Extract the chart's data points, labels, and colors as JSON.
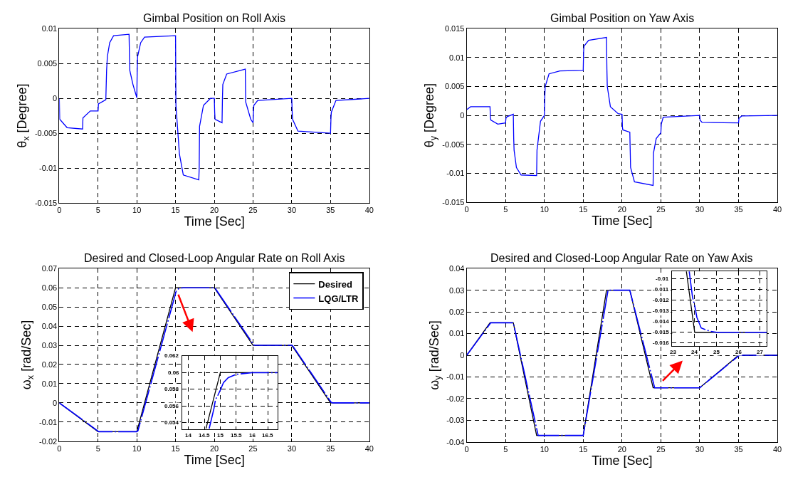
{
  "chart_data": [
    {
      "type": "line",
      "title": "Gimbal Position on Roll Axis",
      "xlabel": "Time [Sec]",
      "ylabel": "θ$_{x}$ [Degree]",
      "xlim": [
        0,
        40
      ],
      "xticks": [
        0,
        5,
        10,
        15,
        20,
        25,
        30,
        35,
        40
      ],
      "ylim": [
        -0.015,
        0.01
      ],
      "yticks": [
        -0.015,
        -0.01,
        -0.005,
        0,
        0.005,
        0.01
      ],
      "grid": true,
      "legend": false,
      "marker": "none",
      "series": [
        {
          "color": "#0000ff",
          "line_style": "solid",
          "x": [
            0,
            0.05,
            1,
            3,
            3.05,
            4,
            5,
            5.05,
            6,
            6.1,
            6.2,
            6.5,
            7,
            9,
            9.05,
            9.1,
            9.5,
            10,
            10.05,
            10.1,
            10.5,
            11,
            15,
            15.05,
            15.5,
            16,
            18,
            18.05,
            18.1,
            18.6,
            19.5,
            20,
            20.05,
            20.1,
            21,
            21.05,
            21.1,
            21.6,
            24,
            24.05,
            24.7,
            25,
            25.05,
            25.1,
            25.6,
            30,
            30.05,
            30.1,
            30.8,
            35,
            35.05,
            35.1,
            35.7,
            40
          ],
          "values": [
            0,
            -0.003,
            -0.0042,
            -0.0044,
            -0.0028,
            -0.0018,
            -0.0018,
            -0.0008,
            -0.0002,
            0.004,
            0.006,
            0.008,
            0.009,
            0.0092,
            0.006,
            0.004,
            0.002,
            0.0001,
            0.004,
            0.006,
            0.008,
            0.0088,
            0.009,
            -0.001,
            -0.008,
            -0.011,
            -0.0117,
            -0.01,
            -0.004,
            -0.001,
            0,
            0,
            -0.002,
            -0.003,
            -0.0035,
            0,
            0.002,
            0.0035,
            0.0042,
            -0.0005,
            -0.003,
            -0.0035,
            -0.002,
            -0.001,
            -0.0003,
            0,
            -0.002,
            -0.003,
            -0.0047,
            -0.005,
            -0.003,
            -0.002,
            -0.0003,
            0
          ]
        }
      ]
    },
    {
      "type": "line",
      "title": "Gimbal Position on Yaw Axis",
      "xlabel": "Time [Sec]",
      "ylabel": "θ$_{y}$ [Degree]",
      "xlim": [
        0,
        40
      ],
      "xticks": [
        0,
        5,
        10,
        15,
        20,
        25,
        30,
        35,
        40
      ],
      "ylim": [
        -0.015,
        0.015
      ],
      "yticks": [
        -0.015,
        -0.01,
        -0.005,
        0,
        0.005,
        0.01,
        0.015
      ],
      "grid": true,
      "legend": false,
      "marker": "none",
      "series": [
        {
          "color": "#0000ff",
          "line_style": "solid",
          "x": [
            0,
            0.5,
            3,
            3.05,
            3.1,
            4,
            5,
            5.05,
            5.2,
            6,
            6.05,
            6.1,
            6.4,
            7,
            9,
            9.05,
            9.5,
            10,
            10.05,
            10.1,
            10.6,
            12,
            15,
            15.05,
            15.1,
            15.7,
            18,
            18.05,
            18.1,
            18.5,
            19.5,
            20,
            20.05,
            20.1,
            21,
            21.05,
            21.1,
            21.6,
            24,
            24.05,
            24.4,
            25,
            25.05,
            25.3,
            30,
            30.05,
            30.3,
            35,
            35.05,
            35.4,
            40
          ],
          "values": [
            0.001,
            0.0015,
            0.0015,
            -0.0003,
            -0.0008,
            -0.0015,
            -0.0013,
            -0.0005,
            -0.0002,
            0.0002,
            -0.004,
            -0.006,
            -0.009,
            -0.0103,
            -0.0104,
            -0.006,
            -0.001,
            0,
            0.003,
            0.005,
            0.0072,
            0.0077,
            0.0078,
            0.011,
            0.012,
            0.013,
            0.0135,
            0.008,
            0.005,
            0.0015,
            0.0003,
            0.0002,
            -0.002,
            -0.0025,
            -0.0029,
            -0.006,
            -0.009,
            -0.0115,
            -0.0121,
            -0.0065,
            -0.004,
            -0.003,
            -0.0015,
            -0.0003,
            0,
            -0.0008,
            -0.0012,
            -0.0013,
            -0.0005,
            -0.0001,
            0
          ]
        }
      ]
    },
    {
      "type": "line",
      "title": "Desired and Closed-Loop Angular Rate on Roll Axis",
      "xlabel": "Time [Sec]",
      "ylabel": "ω$_{x}$ [rad/Sec]",
      "xlim": [
        0,
        40
      ],
      "xticks": [
        0,
        5,
        10,
        15,
        20,
        25,
        30,
        35,
        40
      ],
      "ylim": [
        -0.02,
        0.07
      ],
      "yticks": [
        -0.02,
        -0.01,
        0,
        0.01,
        0.02,
        0.03,
        0.04,
        0.05,
        0.06,
        0.07
      ],
      "grid": true,
      "legend": "top right",
      "marker": "none",
      "series": [
        {
          "name": "Desired",
          "color": "#000000",
          "line_style": "solid",
          "x": [
            0,
            5,
            10,
            15,
            20,
            25,
            30,
            35,
            40
          ],
          "values": [
            0,
            -0.015,
            -0.015,
            0.06,
            0.06,
            0.03,
            0.03,
            0,
            0
          ]
        },
        {
          "name": "LQG/LTR",
          "color": "#0000ff",
          "line_style": "dashed",
          "x": [
            0,
            5.1,
            10,
            10.15,
            15.1,
            15.5,
            16,
            20,
            20.1,
            25.1,
            25.3,
            30,
            30.1,
            35.1,
            35.3,
            40
          ],
          "values": [
            0,
            -0.015,
            -0.015,
            -0.0145,
            0.0585,
            0.0598,
            0.06,
            0.06,
            0.0598,
            0.0302,
            0.03,
            0.03,
            0.0298,
            0.0002,
            0,
            0
          ]
        }
      ]
    },
    {
      "type": "line",
      "title": "Desired and Closed-Loop Angular Rate on Yaw Axis",
      "xlabel": "Time [Sec]",
      "ylabel": "ω$_{y}$ [rad/Sec]",
      "xlim": [
        0,
        40
      ],
      "xticks": [
        0,
        5,
        10,
        15,
        20,
        25,
        30,
        35,
        40
      ],
      "ylim": [
        -0.04,
        0.04
      ],
      "yticks": [
        -0.04,
        -0.03,
        -0.02,
        -0.01,
        0,
        0.01,
        0.02,
        0.03,
        0.04
      ],
      "grid": true,
      "legend": false,
      "marker": "none",
      "series": [
        {
          "color": "#000000",
          "line_style": "solid",
          "x": [
            0,
            3,
            6,
            9,
            15,
            18,
            21,
            24,
            30,
            35,
            40
          ],
          "values": [
            0,
            0.015,
            0.015,
            -0.037,
            -0.037,
            0.03,
            0.03,
            -0.015,
            -0.015,
            0,
            0
          ]
        },
        {
          "color": "#0000ff",
          "line_style": "dashed",
          "x": [
            0,
            3.1,
            6,
            9.2,
            15,
            18.2,
            21,
            24.2,
            30,
            35.1,
            40
          ],
          "values": [
            0,
            0.015,
            0.015,
            -0.037,
            -0.037,
            0.03,
            0.03,
            -0.015,
            -0.015,
            0,
            0
          ]
        }
      ]
    },
    {
      "type": "line",
      "xlim": [
        13.8,
        16.8
      ],
      "xticks": [
        14,
        14.5,
        15,
        15.5,
        16,
        16.5
      ],
      "ylim": [
        0.0532,
        0.062
      ],
      "yticks": [
        0.054,
        0.056,
        0.058,
        0.06,
        0.062
      ],
      "grid": true,
      "legend": false,
      "marker": "none",
      "series": [
        {
          "color": "#000000",
          "line_style": "solid",
          "x": [
            14.55,
            15,
            16.8
          ],
          "values": [
            0.0533,
            0.06,
            0.06
          ]
        },
        {
          "color": "#0000ff",
          "line_style": "dashed",
          "x": [
            14.65,
            14.8,
            14.85,
            14.9,
            15,
            15.1,
            15.25,
            15.5,
            15.75,
            16,
            16.8
          ],
          "values": [
            0.0533,
            0.0557,
            0.0568,
            0.0571,
            0.0579,
            0.0588,
            0.0594,
            0.0598,
            0.0599,
            0.06,
            0.06
          ]
        }
      ]
    },
    {
      "type": "line",
      "xlim": [
        22.97,
        27.3
      ],
      "xticks": [
        23,
        24,
        25,
        26,
        27
      ],
      "ylim": [
        -0.0163,
        -0.0093
      ],
      "yticks": [
        -0.016,
        -0.015,
        -0.014,
        -0.013,
        -0.012,
        -0.011,
        -0.01
      ],
      "grid": true,
      "legend": false,
      "marker": "none",
      "series": [
        {
          "color": "#000000",
          "line_style": "solid",
          "x": [
            23.62,
            24,
            27.3
          ],
          "values": [
            -0.0093,
            -0.015,
            -0.015
          ]
        },
        {
          "color": "#0000ff",
          "line_style": "dashed",
          "x": [
            23.75,
            23.9,
            24,
            24.1,
            24.3,
            24.7,
            25,
            27.3
          ],
          "values": [
            -0.0093,
            -0.0117,
            -0.0125,
            -0.0136,
            -0.0146,
            -0.0149,
            -0.015,
            -0.015
          ]
        }
      ]
    }
  ]
}
